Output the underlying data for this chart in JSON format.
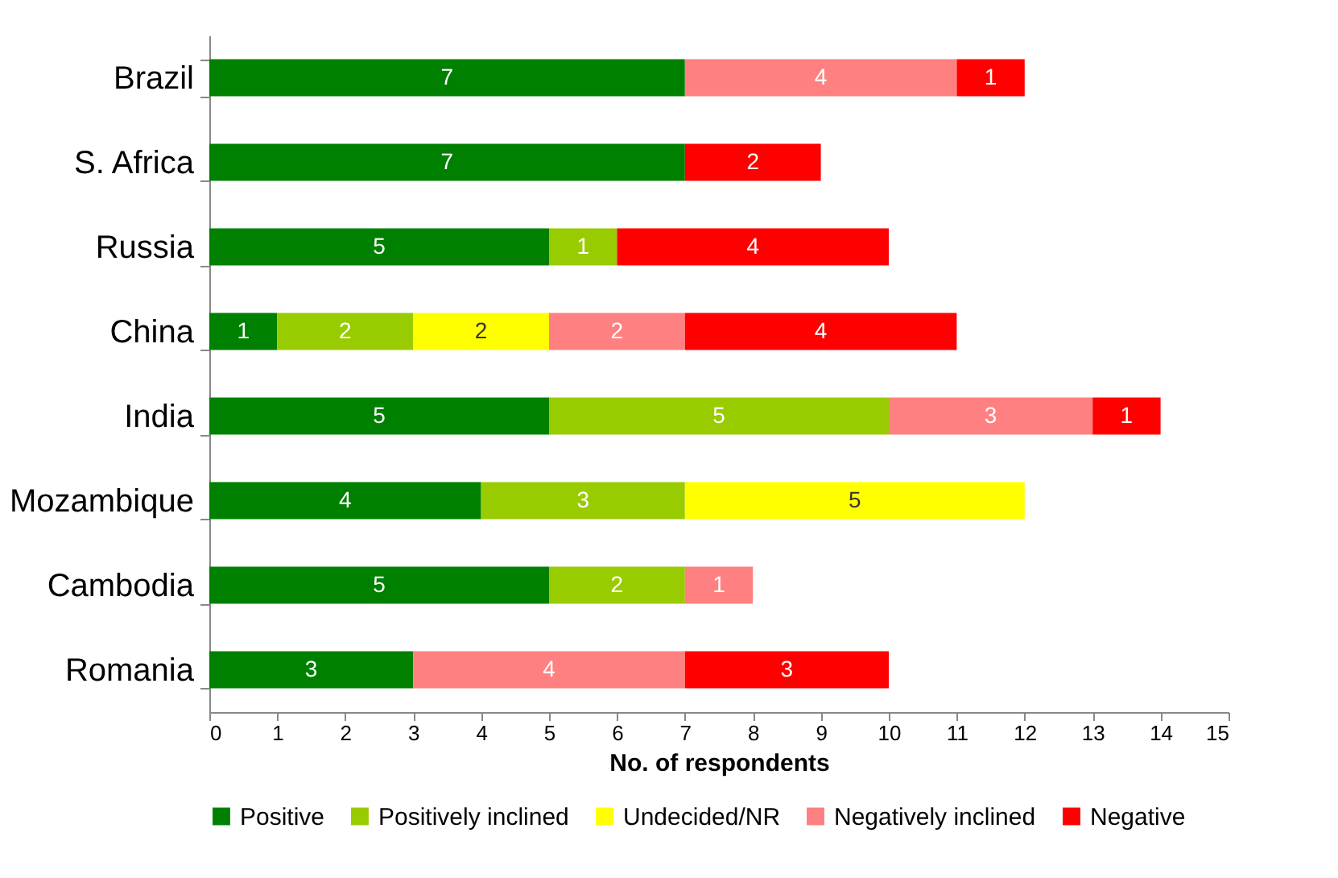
{
  "chart_data": {
    "type": "bar",
    "orientation": "horizontal",
    "stacked": true,
    "data_labels": true,
    "legend": "bottom",
    "xlabel": "No. of respondents",
    "categories": [
      "Brazil",
      "S. Africa",
      "Russia",
      "China",
      "India",
      "Mozambique",
      "Cambodia",
      "Romania"
    ],
    "xlim": [
      0,
      15
    ],
    "xticks": [
      0,
      1,
      2,
      3,
      4,
      5,
      6,
      7,
      8,
      9,
      10,
      11,
      12,
      13,
      14,
      15
    ],
    "series": [
      {
        "name": "Positive",
        "color": "#008000",
        "values": [
          7,
          7,
          5,
          1,
          5,
          4,
          5,
          3
        ]
      },
      {
        "name": "Positively inclined",
        "color": "#99cc00",
        "values": [
          null,
          null,
          1,
          2,
          5,
          3,
          2,
          null
        ]
      },
      {
        "name": "Undecided/NR",
        "color": "#ffff00",
        "values": [
          null,
          null,
          null,
          2,
          null,
          5,
          null,
          null
        ]
      },
      {
        "name": "Negatively inclined",
        "color": "#ff8080",
        "values": [
          4,
          null,
          null,
          2,
          3,
          null,
          1,
          4
        ]
      },
      {
        "name": "Negative",
        "color": "#ff0000",
        "values": [
          1,
          2,
          4,
          4,
          1,
          null,
          null,
          3
        ]
      }
    ]
  }
}
